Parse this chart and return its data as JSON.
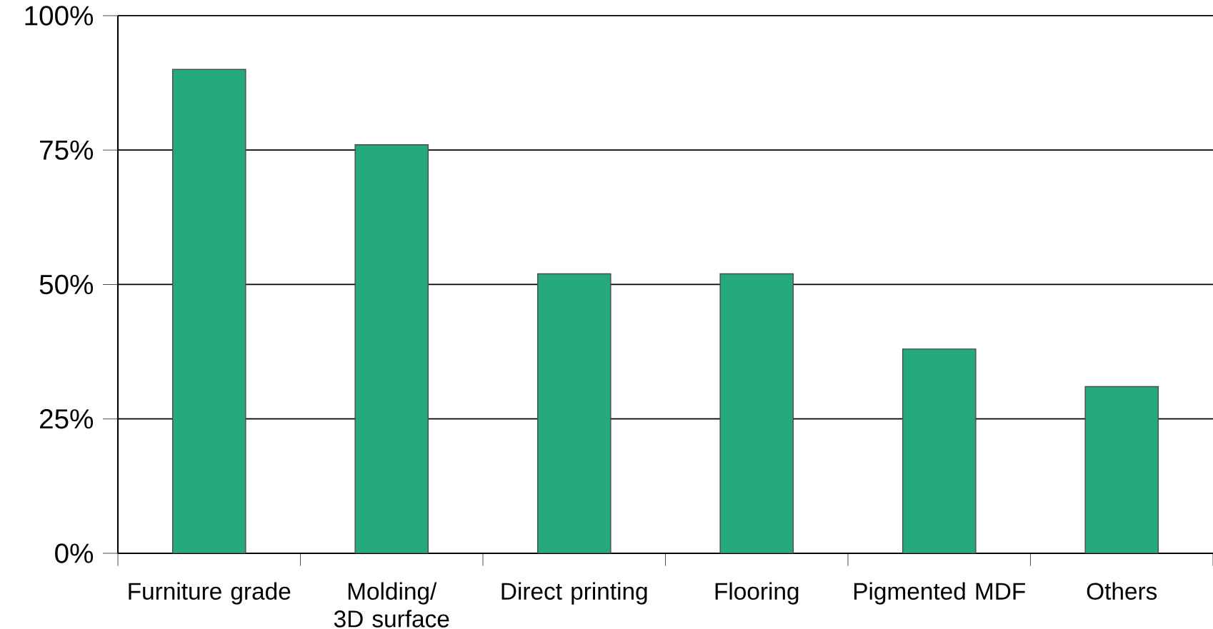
{
  "chart_data": {
    "type": "bar",
    "categories": [
      "Furniture grade",
      "Molding/ 3D surface",
      "Direct printing",
      "Flooring",
      "Pigmented MDF",
      "Others"
    ],
    "values": [
      90,
      76,
      52,
      52,
      38,
      31
    ],
    "color": "#27a97f",
    "ylim": [
      0,
      100
    ],
    "yticks": [
      {
        "value": 0,
        "label": "0%"
      },
      {
        "value": 25,
        "label": "25%"
      },
      {
        "value": 50,
        "label": "50%"
      },
      {
        "value": 75,
        "label": "75%"
      },
      {
        "value": 100,
        "label": "100%"
      }
    ],
    "grid": "y"
  }
}
